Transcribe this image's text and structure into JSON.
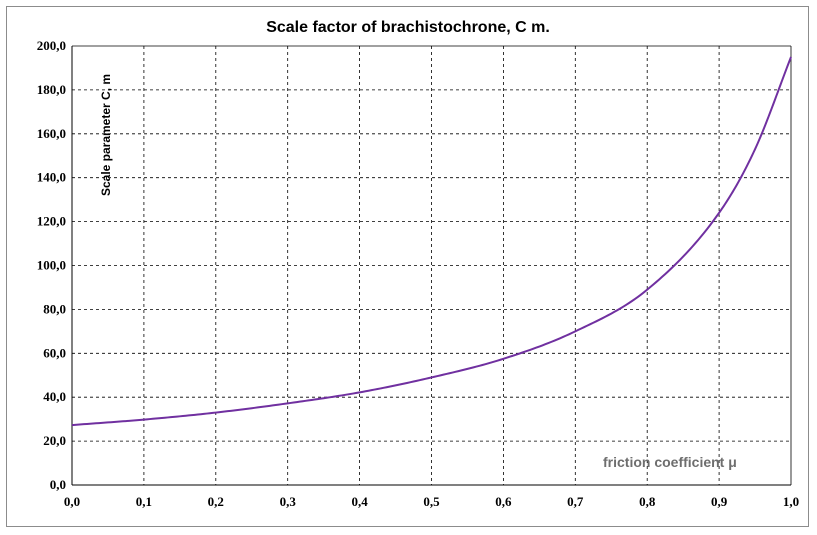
{
  "chart_data": {
    "type": "line",
    "title": "Scale factor of brachistochrone,  C m.",
    "xlabel": "friction coefficient μ",
    "ylabel": "Scale parameter C, m",
    "xlim": [
      0,
      1
    ],
    "ylim": [
      0,
      200
    ],
    "x_ticks": [
      "0,0",
      "0,1",
      "0,2",
      "0,3",
      "0,4",
      "0,5",
      "0,6",
      "0,7",
      "0,8",
      "0,9",
      "1,0"
    ],
    "y_ticks": [
      "0,0",
      "20,0",
      "40,0",
      "60,0",
      "80,0",
      "100,0",
      "120,0",
      "140,0",
      "160,0",
      "180,0",
      "200,0"
    ],
    "grid": true,
    "series": [
      {
        "color": "#7030a0",
        "x": [
          0.0,
          0.1,
          0.2,
          0.3,
          0.4,
          0.5,
          0.6,
          0.7,
          0.8,
          0.9,
          0.95,
          1.0
        ],
        "y": [
          27.3,
          29.8,
          33.0,
          37.2,
          42.2,
          49.0,
          57.5,
          70.0,
          89.0,
          124.0,
          153.0,
          195.0
        ]
      }
    ]
  }
}
